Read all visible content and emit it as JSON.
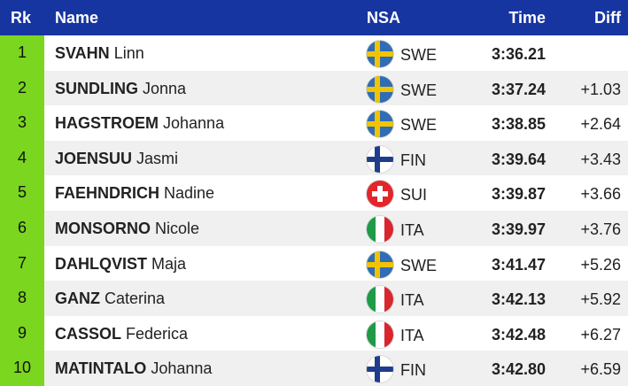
{
  "header": {
    "rank": "Rk",
    "name": "Name",
    "nsa": "NSA",
    "time": "Time",
    "diff": "Diff"
  },
  "rows": [
    {
      "rank": "1",
      "last": "SVAHN",
      "first": "Linn",
      "nsa": "SWE",
      "flag": "sweden-flag-icon",
      "time": "3:36.21",
      "diff": ""
    },
    {
      "rank": "2",
      "last": "SUNDLING",
      "first": "Jonna",
      "nsa": "SWE",
      "flag": "sweden-flag-icon",
      "time": "3:37.24",
      "diff": "+1.03"
    },
    {
      "rank": "3",
      "last": "HAGSTROEM",
      "first": "Johanna",
      "nsa": "SWE",
      "flag": "sweden-flag-icon",
      "time": "3:38.85",
      "diff": "+2.64"
    },
    {
      "rank": "4",
      "last": "JOENSUU",
      "first": "Jasmi",
      "nsa": "FIN",
      "flag": "finland-flag-icon",
      "time": "3:39.64",
      "diff": "+3.43"
    },
    {
      "rank": "5",
      "last": "FAEHNDRICH",
      "first": "Nadine",
      "nsa": "SUI",
      "flag": "switzerland-flag-icon",
      "time": "3:39.87",
      "diff": "+3.66"
    },
    {
      "rank": "6",
      "last": "MONSORNO",
      "first": "Nicole",
      "nsa": "ITA",
      "flag": "italy-flag-icon",
      "time": "3:39.97",
      "diff": "+3.76"
    },
    {
      "rank": "7",
      "last": "DAHLQVIST",
      "first": "Maja",
      "nsa": "SWE",
      "flag": "sweden-flag-icon",
      "time": "3:41.47",
      "diff": "+5.26"
    },
    {
      "rank": "8",
      "last": "GANZ",
      "first": "Caterina",
      "nsa": "ITA",
      "flag": "italy-flag-icon",
      "time": "3:42.13",
      "diff": "+5.92"
    },
    {
      "rank": "9",
      "last": "CASSOL",
      "first": "Federica",
      "nsa": "ITA",
      "flag": "italy-flag-icon",
      "time": "3:42.48",
      "diff": "+6.27"
    },
    {
      "rank": "10",
      "last": "MATINTALO",
      "first": "Johanna",
      "nsa": "FIN",
      "flag": "finland-flag-icon",
      "time": "3:42.80",
      "diff": "+6.59"
    }
  ],
  "colors": {
    "header_bg": "#1635a0",
    "rank_bg": "#7ad61e",
    "alt_row_bg": "#f0f0f0"
  }
}
